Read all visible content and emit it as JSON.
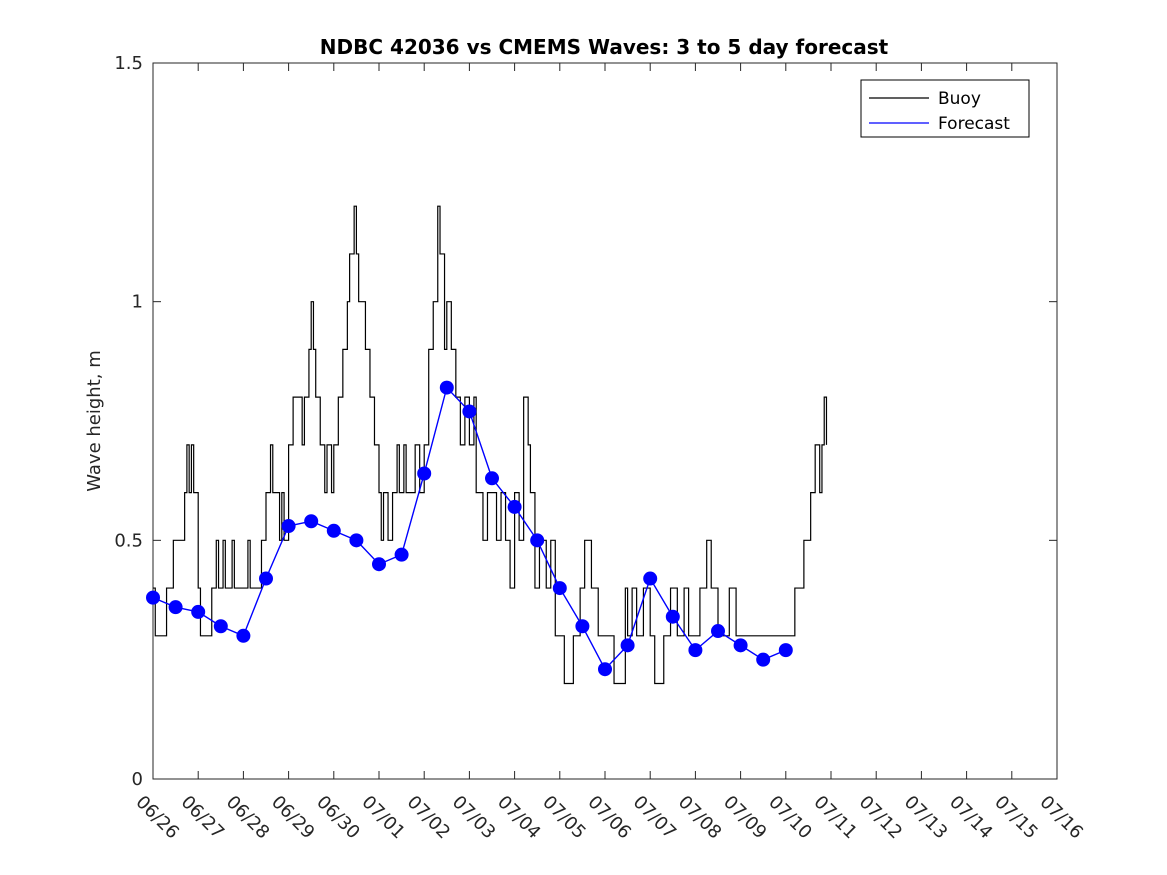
{
  "chart_data": {
    "type": "line",
    "title": "NDBC 42036 vs CMEMS Waves: 3 to 5 day forecast",
    "xlabel": "",
    "ylabel": "Wave height, m",
    "xlim": [
      "06/26",
      "07/16"
    ],
    "ylim": [
      0,
      1.5
    ],
    "x_ticks": [
      "06/26",
      "06/27",
      "06/28",
      "06/29",
      "06/30",
      "07/01",
      "07/02",
      "07/03",
      "07/04",
      "07/05",
      "07/06",
      "07/07",
      "07/08",
      "07/09",
      "07/10",
      "07/11",
      "07/12",
      "07/13",
      "07/14",
      "07/15",
      "07/16"
    ],
    "y_ticks": [
      0,
      0.5,
      1,
      1.5
    ],
    "y_tick_labels": [
      "0",
      "0.5",
      "1",
      "1.5"
    ],
    "grid": false,
    "legend_position": "top-right",
    "colors": {
      "buoy": "#000000",
      "forecast": "#0000ff"
    },
    "legend": [
      "Buoy",
      "Forecast"
    ],
    "series": [
      {
        "name": "Buoy",
        "kind": "step",
        "points": [
          [
            0.0,
            0.4
          ],
          [
            0.05,
            0.3
          ],
          [
            0.25,
            0.3
          ],
          [
            0.3,
            0.4
          ],
          [
            0.45,
            0.5
          ],
          [
            0.6,
            0.5
          ],
          [
            0.7,
            0.6
          ],
          [
            0.75,
            0.7
          ],
          [
            0.8,
            0.6
          ],
          [
            0.85,
            0.7
          ],
          [
            0.9,
            0.6
          ],
          [
            1.0,
            0.4
          ],
          [
            1.05,
            0.3
          ],
          [
            1.2,
            0.3
          ],
          [
            1.3,
            0.4
          ],
          [
            1.4,
            0.5
          ],
          [
            1.45,
            0.4
          ],
          [
            1.55,
            0.5
          ],
          [
            1.6,
            0.4
          ],
          [
            1.75,
            0.5
          ],
          [
            1.8,
            0.4
          ],
          [
            2.0,
            0.4
          ],
          [
            2.1,
            0.5
          ],
          [
            2.15,
            0.4
          ],
          [
            2.3,
            0.4
          ],
          [
            2.4,
            0.5
          ],
          [
            2.5,
            0.6
          ],
          [
            2.6,
            0.7
          ],
          [
            2.65,
            0.6
          ],
          [
            2.8,
            0.5
          ],
          [
            2.85,
            0.6
          ],
          [
            2.9,
            0.5
          ],
          [
            3.0,
            0.7
          ],
          [
            3.1,
            0.8
          ],
          [
            3.3,
            0.7
          ],
          [
            3.35,
            0.8
          ],
          [
            3.45,
            0.9
          ],
          [
            3.5,
            1.0
          ],
          [
            3.55,
            0.9
          ],
          [
            3.6,
            0.8
          ],
          [
            3.7,
            0.7
          ],
          [
            3.8,
            0.6
          ],
          [
            3.85,
            0.7
          ],
          [
            3.95,
            0.6
          ],
          [
            4.0,
            0.7
          ],
          [
            4.1,
            0.8
          ],
          [
            4.2,
            0.9
          ],
          [
            4.3,
            1.0
          ],
          [
            4.35,
            1.1
          ],
          [
            4.45,
            1.2
          ],
          [
            4.5,
            1.1
          ],
          [
            4.55,
            1.0
          ],
          [
            4.7,
            0.9
          ],
          [
            4.8,
            0.8
          ],
          [
            4.9,
            0.7
          ],
          [
            5.0,
            0.6
          ],
          [
            5.05,
            0.5
          ],
          [
            5.1,
            0.6
          ],
          [
            5.2,
            0.5
          ],
          [
            5.3,
            0.6
          ],
          [
            5.4,
            0.7
          ],
          [
            5.45,
            0.6
          ],
          [
            5.55,
            0.7
          ],
          [
            5.6,
            0.6
          ],
          [
            5.7,
            0.6
          ],
          [
            5.8,
            0.7
          ],
          [
            5.9,
            0.6
          ],
          [
            6.0,
            0.7
          ],
          [
            6.1,
            0.9
          ],
          [
            6.2,
            1.0
          ],
          [
            6.3,
            1.2
          ],
          [
            6.35,
            1.1
          ],
          [
            6.45,
            0.9
          ],
          [
            6.5,
            1.0
          ],
          [
            6.6,
            0.9
          ],
          [
            6.7,
            0.8
          ],
          [
            6.8,
            0.7
          ],
          [
            6.9,
            0.8
          ],
          [
            7.0,
            0.7
          ],
          [
            7.1,
            0.8
          ],
          [
            7.15,
            0.6
          ],
          [
            7.3,
            0.5
          ],
          [
            7.4,
            0.6
          ],
          [
            7.5,
            0.6
          ],
          [
            7.6,
            0.5
          ],
          [
            7.7,
            0.6
          ],
          [
            7.8,
            0.5
          ],
          [
            7.9,
            0.4
          ],
          [
            8.0,
            0.6
          ],
          [
            8.1,
            0.5
          ],
          [
            8.2,
            0.8
          ],
          [
            8.3,
            0.7
          ],
          [
            8.35,
            0.6
          ],
          [
            8.45,
            0.4
          ],
          [
            8.55,
            0.5
          ],
          [
            8.7,
            0.4
          ],
          [
            8.8,
            0.5
          ],
          [
            8.9,
            0.3
          ],
          [
            9.0,
            0.3
          ],
          [
            9.1,
            0.2
          ],
          [
            9.2,
            0.2
          ],
          [
            9.3,
            0.3
          ],
          [
            9.45,
            0.4
          ],
          [
            9.55,
            0.5
          ],
          [
            9.7,
            0.4
          ],
          [
            9.85,
            0.3
          ],
          [
            10.0,
            0.3
          ],
          [
            10.2,
            0.2
          ],
          [
            10.35,
            0.2
          ],
          [
            10.45,
            0.4
          ],
          [
            10.5,
            0.3
          ],
          [
            10.6,
            0.4
          ],
          [
            10.7,
            0.3
          ],
          [
            10.85,
            0.4
          ],
          [
            11.0,
            0.3
          ],
          [
            11.1,
            0.2
          ],
          [
            11.25,
            0.2
          ],
          [
            11.3,
            0.3
          ],
          [
            11.45,
            0.4
          ],
          [
            11.6,
            0.3
          ],
          [
            11.75,
            0.4
          ],
          [
            11.85,
            0.3
          ],
          [
            12.0,
            0.3
          ],
          [
            12.1,
            0.4
          ],
          [
            12.25,
            0.5
          ],
          [
            12.35,
            0.4
          ],
          [
            12.5,
            0.3
          ],
          [
            12.65,
            0.3
          ],
          [
            12.75,
            0.4
          ],
          [
            12.9,
            0.3
          ],
          [
            13.0,
            0.3
          ],
          [
            13.3,
            0.3
          ],
          [
            13.6,
            0.3
          ],
          [
            14.0,
            0.3
          ],
          [
            14.2,
            0.4
          ],
          [
            14.4,
            0.5
          ],
          [
            14.55,
            0.6
          ],
          [
            14.65,
            0.7
          ],
          [
            14.75,
            0.6
          ],
          [
            14.8,
            0.7
          ],
          [
            14.85,
            0.8
          ],
          [
            14.9,
            0.7
          ]
        ]
      },
      {
        "name": "Forecast",
        "kind": "line",
        "points": [
          [
            0.0,
            0.38
          ],
          [
            0.5,
            0.36
          ],
          [
            1.0,
            0.35
          ],
          [
            1.5,
            0.32
          ],
          [
            2.0,
            0.3
          ],
          [
            2.5,
            0.42
          ],
          [
            3.0,
            0.53
          ],
          [
            3.5,
            0.54
          ],
          [
            4.0,
            0.52
          ],
          [
            4.5,
            0.5
          ],
          [
            5.0,
            0.45
          ],
          [
            5.5,
            0.47
          ],
          [
            6.0,
            0.64
          ],
          [
            6.5,
            0.82
          ],
          [
            7.0,
            0.77
          ],
          [
            7.5,
            0.63
          ],
          [
            8.0,
            0.57
          ],
          [
            8.5,
            0.5
          ],
          [
            9.0,
            0.4
          ],
          [
            9.5,
            0.32
          ],
          [
            10.0,
            0.23
          ],
          [
            10.5,
            0.28
          ],
          [
            11.0,
            0.42
          ],
          [
            11.5,
            0.34
          ],
          [
            12.0,
            0.27
          ],
          [
            12.5,
            0.31
          ],
          [
            13.0,
            0.28
          ],
          [
            13.5,
            0.25
          ],
          [
            14.0,
            0.27
          ]
        ]
      }
    ]
  }
}
